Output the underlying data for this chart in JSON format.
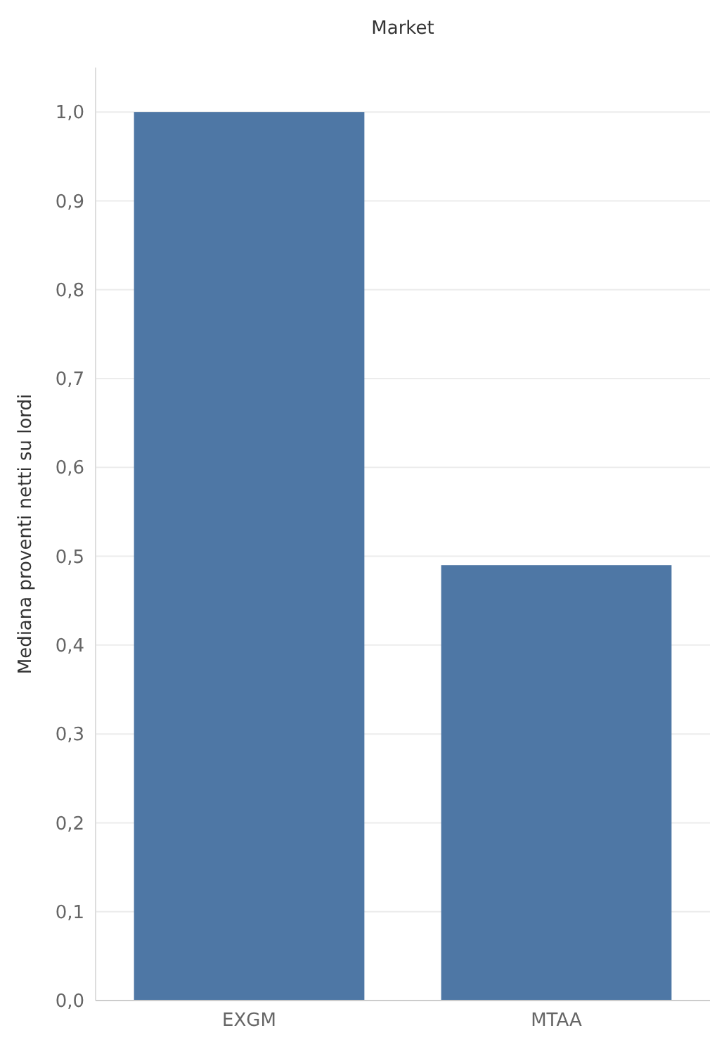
{
  "chart_data": {
    "type": "bar",
    "title": "Market",
    "ylabel": "Mediana proventi netti su lordi",
    "categories": [
      "EXGM",
      "MTAA"
    ],
    "values": [
      1.0,
      0.49
    ],
    "color": "#4e77a5",
    "ylim": [
      0,
      1.05
    ],
    "yticks": [
      {
        "value": 0,
        "label": "0,0"
      },
      {
        "value": 0.1,
        "label": "0,1"
      },
      {
        "value": 0.2,
        "label": "0,2"
      },
      {
        "value": 0.3,
        "label": "0,3"
      },
      {
        "value": 0.4,
        "label": "0,4"
      },
      {
        "value": 0.5,
        "label": "0,5"
      },
      {
        "value": 0.6,
        "label": "0,6"
      },
      {
        "value": 0.7,
        "label": "0,7"
      },
      {
        "value": 0.8,
        "label": "0,8"
      },
      {
        "value": 0.9,
        "label": "0,9"
      },
      {
        "value": 1.0,
        "label": "1,0"
      }
    ],
    "grid": true
  }
}
